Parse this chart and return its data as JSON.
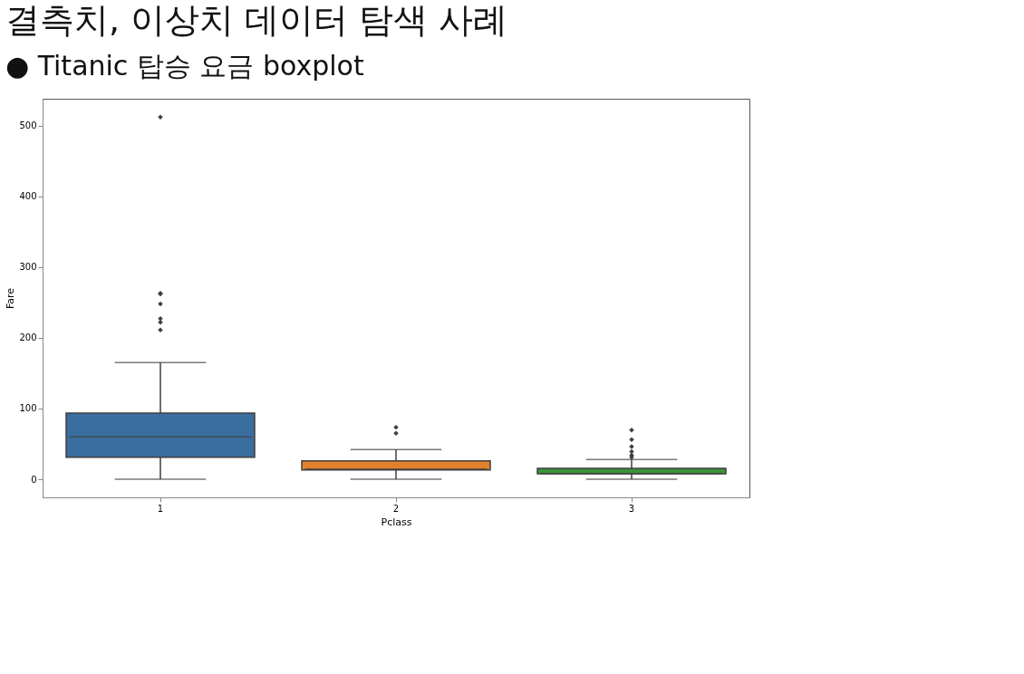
{
  "chart_data": {
    "type": "box",
    "title": "결측치, 이상치 데이터 탐색 사례",
    "subtitle": "● Titanic 탑승 요금 boxplot",
    "xlabel": "Pclass",
    "ylabel": "Fare",
    "categories": [
      "1",
      "2",
      "3"
    ],
    "colors": [
      "#3a6e9e",
      "#e1812c",
      "#3a923a"
    ],
    "boxes": [
      {
        "low": 0,
        "q1": 31,
        "median": 60,
        "q3": 93.5,
        "high": 165,
        "outliers": [
          211,
          222,
          227,
          248,
          262,
          263,
          512
        ]
      },
      {
        "low": 0,
        "q1": 13,
        "median": 14.5,
        "q3": 26,
        "high": 42,
        "outliers": [
          65,
          73.5
        ]
      },
      {
        "low": 0,
        "q1": 7.75,
        "median": 8,
        "q3": 15.5,
        "high": 28,
        "outliers": [
          31,
          34,
          39,
          46,
          56,
          69.5
        ]
      }
    ],
    "ylim": [
      -25.6,
      538
    ],
    "yticks": [
      0,
      100,
      200,
      300,
      400,
      500
    ],
    "grid": false,
    "marker": "diamond"
  }
}
